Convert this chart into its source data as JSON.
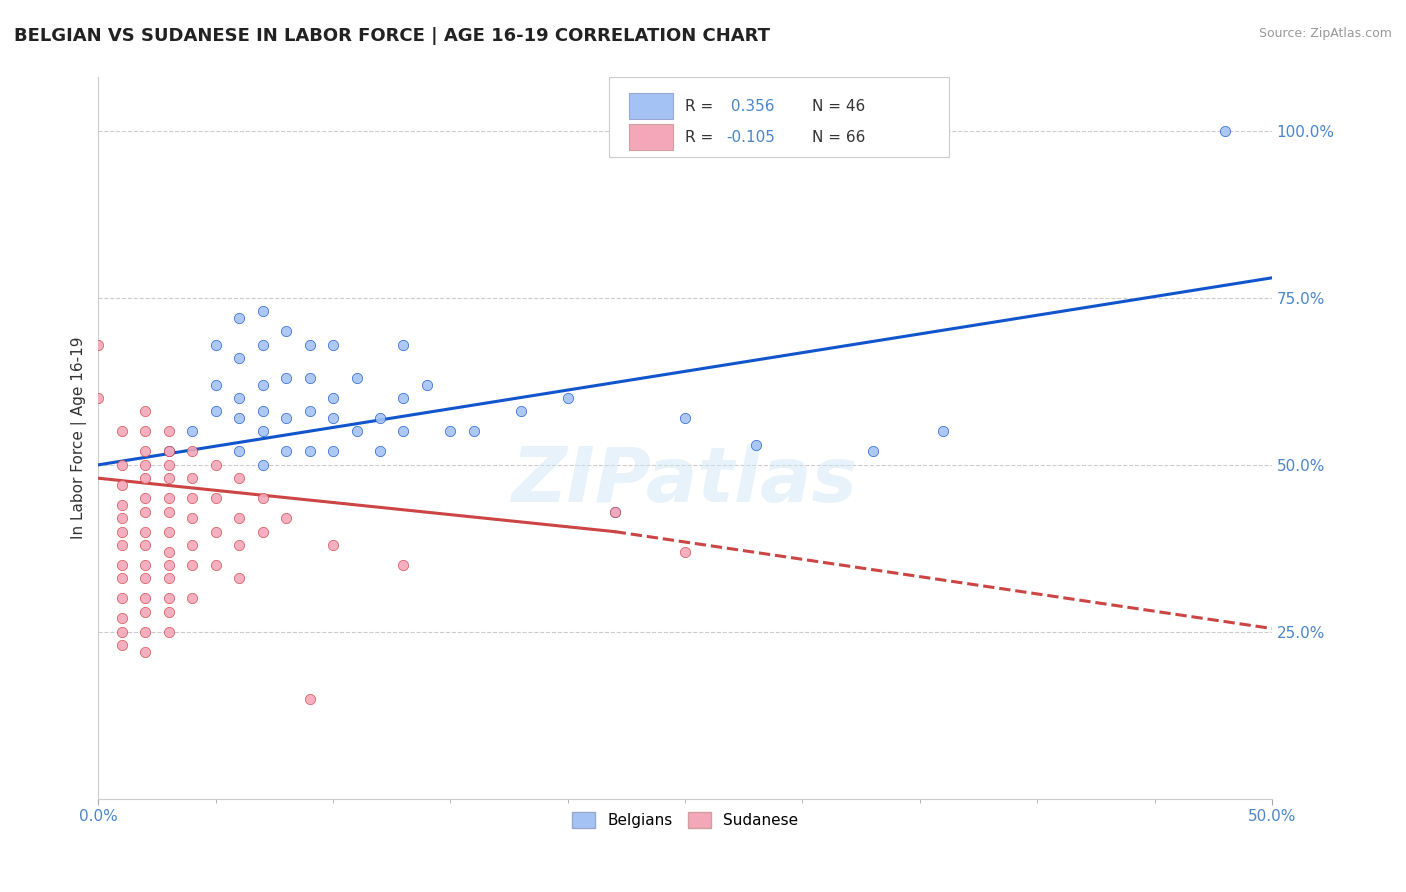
{
  "title": "BELGIAN VS SUDANESE IN LABOR FORCE | AGE 16-19 CORRELATION CHART",
  "source": "Source: ZipAtlas.com",
  "ylabel": "In Labor Force | Age 16-19",
  "xlim": [
    0.0,
    0.5
  ],
  "ylim": [
    0.0,
    1.08
  ],
  "xticks": [
    0.0,
    0.5
  ],
  "xticklabels": [
    "0.0%",
    "50.0%"
  ],
  "yticks": [
    0.25,
    0.5,
    0.75,
    1.0
  ],
  "yticklabels": [
    "25.0%",
    "50.0%",
    "75.0%",
    "100.0%"
  ],
  "belgian_color": "#a4c2f4",
  "sudanese_color": "#f4a7b9",
  "belgian_line_color": "#1155cc",
  "sudanese_line_color": "#cc4444",
  "r_belgian": 0.356,
  "r_sudanese": -0.105,
  "n_belgian": 46,
  "n_sudanese": 66,
  "belgian_scatter": [
    [
      0.03,
      0.52
    ],
    [
      0.04,
      0.55
    ],
    [
      0.05,
      0.58
    ],
    [
      0.05,
      0.62
    ],
    [
      0.05,
      0.68
    ],
    [
      0.06,
      0.52
    ],
    [
      0.06,
      0.57
    ],
    [
      0.06,
      0.6
    ],
    [
      0.06,
      0.66
    ],
    [
      0.06,
      0.72
    ],
    [
      0.07,
      0.5
    ],
    [
      0.07,
      0.55
    ],
    [
      0.07,
      0.58
    ],
    [
      0.07,
      0.62
    ],
    [
      0.07,
      0.68
    ],
    [
      0.07,
      0.73
    ],
    [
      0.08,
      0.52
    ],
    [
      0.08,
      0.57
    ],
    [
      0.08,
      0.63
    ],
    [
      0.08,
      0.7
    ],
    [
      0.09,
      0.52
    ],
    [
      0.09,
      0.58
    ],
    [
      0.09,
      0.63
    ],
    [
      0.09,
      0.68
    ],
    [
      0.1,
      0.52
    ],
    [
      0.1,
      0.57
    ],
    [
      0.1,
      0.6
    ],
    [
      0.1,
      0.68
    ],
    [
      0.11,
      0.55
    ],
    [
      0.11,
      0.63
    ],
    [
      0.12,
      0.52
    ],
    [
      0.12,
      0.57
    ],
    [
      0.13,
      0.55
    ],
    [
      0.13,
      0.6
    ],
    [
      0.13,
      0.68
    ],
    [
      0.14,
      0.62
    ],
    [
      0.15,
      0.55
    ],
    [
      0.16,
      0.55
    ],
    [
      0.18,
      0.58
    ],
    [
      0.2,
      0.6
    ],
    [
      0.22,
      0.43
    ],
    [
      0.25,
      0.57
    ],
    [
      0.28,
      0.53
    ],
    [
      0.33,
      0.52
    ],
    [
      0.36,
      0.55
    ],
    [
      0.48,
      1.0
    ]
  ],
  "sudanese_scatter": [
    [
      0.0,
      0.68
    ],
    [
      0.0,
      0.6
    ],
    [
      0.01,
      0.55
    ],
    [
      0.01,
      0.5
    ],
    [
      0.01,
      0.47
    ],
    [
      0.01,
      0.44
    ],
    [
      0.01,
      0.42
    ],
    [
      0.01,
      0.4
    ],
    [
      0.01,
      0.38
    ],
    [
      0.01,
      0.35
    ],
    [
      0.01,
      0.33
    ],
    [
      0.01,
      0.3
    ],
    [
      0.01,
      0.27
    ],
    [
      0.01,
      0.25
    ],
    [
      0.01,
      0.23
    ],
    [
      0.02,
      0.58
    ],
    [
      0.02,
      0.55
    ],
    [
      0.02,
      0.52
    ],
    [
      0.02,
      0.5
    ],
    [
      0.02,
      0.48
    ],
    [
      0.02,
      0.45
    ],
    [
      0.02,
      0.43
    ],
    [
      0.02,
      0.4
    ],
    [
      0.02,
      0.38
    ],
    [
      0.02,
      0.35
    ],
    [
      0.02,
      0.33
    ],
    [
      0.02,
      0.3
    ],
    [
      0.02,
      0.28
    ],
    [
      0.02,
      0.25
    ],
    [
      0.02,
      0.22
    ],
    [
      0.03,
      0.55
    ],
    [
      0.03,
      0.52
    ],
    [
      0.03,
      0.5
    ],
    [
      0.03,
      0.48
    ],
    [
      0.03,
      0.45
    ],
    [
      0.03,
      0.43
    ],
    [
      0.03,
      0.4
    ],
    [
      0.03,
      0.37
    ],
    [
      0.03,
      0.35
    ],
    [
      0.03,
      0.33
    ],
    [
      0.03,
      0.3
    ],
    [
      0.03,
      0.28
    ],
    [
      0.03,
      0.25
    ],
    [
      0.04,
      0.52
    ],
    [
      0.04,
      0.48
    ],
    [
      0.04,
      0.45
    ],
    [
      0.04,
      0.42
    ],
    [
      0.04,
      0.38
    ],
    [
      0.04,
      0.35
    ],
    [
      0.04,
      0.3
    ],
    [
      0.05,
      0.5
    ],
    [
      0.05,
      0.45
    ],
    [
      0.05,
      0.4
    ],
    [
      0.05,
      0.35
    ],
    [
      0.06,
      0.48
    ],
    [
      0.06,
      0.42
    ],
    [
      0.06,
      0.38
    ],
    [
      0.06,
      0.33
    ],
    [
      0.07,
      0.45
    ],
    [
      0.07,
      0.4
    ],
    [
      0.08,
      0.42
    ],
    [
      0.09,
      0.15
    ],
    [
      0.1,
      0.38
    ],
    [
      0.13,
      0.35
    ],
    [
      0.22,
      0.43
    ],
    [
      0.25,
      0.37
    ]
  ],
  "background_color": "#ffffff",
  "grid_color": "#cccccc",
  "tick_color": "#4a86c8",
  "title_fontsize": 13,
  "axis_fontsize": 11,
  "tick_fontsize": 11,
  "legend_fontsize": 11,
  "watermark": "ZIPatlas"
}
